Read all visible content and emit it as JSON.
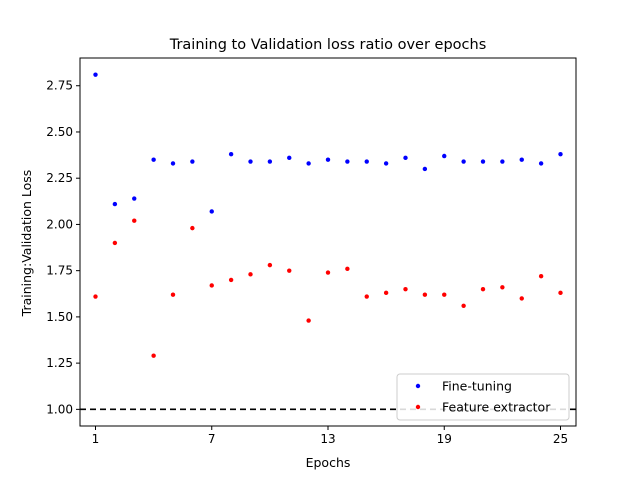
{
  "chart_data": {
    "type": "scatter",
    "title": "Training to Validation loss ratio over epochs",
    "xlabel": "Epochs",
    "ylabel": "Training:Validation Loss",
    "xlim": [
      0.2,
      25.8
    ],
    "ylim": [
      0.91,
      2.9
    ],
    "xticks": [
      1,
      7,
      13,
      19,
      25
    ],
    "yticks": [
      1.0,
      1.25,
      1.5,
      1.75,
      2.0,
      2.25,
      2.5,
      2.75
    ],
    "ytick_labels": [
      "1.00",
      "1.25",
      "1.50",
      "1.75",
      "2.00",
      "2.25",
      "2.50",
      "2.75"
    ],
    "reference_line": {
      "y": 1.0,
      "style": "dashed",
      "color": "#000000"
    },
    "legend_position": "lower-right",
    "x": [
      1,
      2,
      3,
      4,
      5,
      6,
      7,
      8,
      9,
      10,
      11,
      12,
      13,
      14,
      15,
      16,
      17,
      18,
      19,
      20,
      21,
      22,
      23,
      24,
      25
    ],
    "series": [
      {
        "name": "Fine-tuning",
        "color": "#0000ff",
        "values": [
          2.81,
          2.11,
          2.14,
          2.35,
          2.33,
          2.34,
          2.07,
          2.38,
          2.34,
          2.34,
          2.36,
          2.33,
          2.35,
          2.34,
          2.34,
          2.33,
          2.36,
          2.3,
          2.37,
          2.34,
          2.34,
          2.34,
          2.35,
          2.33,
          2.38
        ]
      },
      {
        "name": "Feature extractor",
        "color": "#ff0000",
        "values": [
          1.61,
          1.9,
          2.02,
          1.29,
          1.62,
          1.98,
          1.67,
          1.7,
          1.73,
          1.78,
          1.75,
          1.48,
          1.74,
          1.76,
          1.61,
          1.63,
          1.65,
          1.62,
          1.62,
          1.56,
          1.65,
          1.66,
          1.6,
          1.72,
          1.63
        ]
      }
    ]
  }
}
